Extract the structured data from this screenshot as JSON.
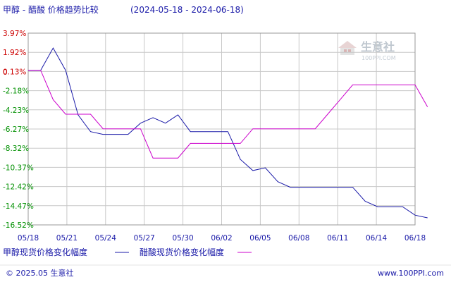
{
  "chart_data": {
    "type": "line",
    "title": "甲醇 - 醋酸  价格趋势比较",
    "date_range": "(2024-05-18 - 2024-06-18)",
    "x_ticks": [
      "05/18",
      "05/21",
      "05/24",
      "05/27",
      "05/30",
      "06/02",
      "06/05",
      "06/08",
      "06/11",
      "06/14",
      "06/18"
    ],
    "y_ticks": [
      "3.97%",
      "1.92%",
      "0.13%",
      "-2.18%",
      "-4.23%",
      "-6.27%",
      "-8.32%",
      "-10.37%",
      "-12.42%",
      "-14.47%",
      "-16.52%"
    ],
    "y_tick_colors": [
      "#cc0000",
      "#cc0000",
      "#cc0000",
      "#009000",
      "#009000",
      "#009000",
      "#009000",
      "#009000",
      "#009000",
      "#009000",
      "#009000"
    ],
    "y_zero_label": "0",
    "xlim": [
      "2024-05-18",
      "2024-06-18"
    ],
    "ylim": [
      -16.52,
      3.97
    ],
    "grid": true,
    "series": [
      {
        "name": "甲醇现货价格变化幅度",
        "color": "#1a1aa8",
        "points": [
          [
            "2024-05-18",
            0.0
          ],
          [
            "2024-05-19",
            0.0
          ],
          [
            "2024-05-20",
            2.38
          ],
          [
            "2024-05-21",
            0.0
          ],
          [
            "2024-05-22",
            -4.76
          ],
          [
            "2024-05-23",
            -6.55
          ],
          [
            "2024-05-24",
            -6.85
          ],
          [
            "2024-05-26",
            -6.85
          ],
          [
            "2024-05-27",
            -5.65
          ],
          [
            "2024-05-28",
            -5.06
          ],
          [
            "2024-05-29",
            -5.65
          ],
          [
            "2024-05-30",
            -4.76
          ],
          [
            "2024-05-31",
            -6.55
          ],
          [
            "2024-06-01",
            -6.55
          ],
          [
            "2024-06-03",
            -6.55
          ],
          [
            "2024-06-04",
            -9.52
          ],
          [
            "2024-06-05",
            -10.71
          ],
          [
            "2024-06-06",
            -10.42
          ],
          [
            "2024-06-07",
            -11.9
          ],
          [
            "2024-06-08",
            -12.5
          ],
          [
            "2024-06-13",
            -12.5
          ],
          [
            "2024-06-14",
            -13.99
          ],
          [
            "2024-06-15",
            -14.58
          ],
          [
            "2024-06-17",
            -14.58
          ],
          [
            "2024-06-18",
            -15.48
          ],
          [
            "2024-06-19",
            -15.77
          ]
        ]
      },
      {
        "name": "醋酸现货价格变化幅度",
        "color": "#cc00cc",
        "points": [
          [
            "2024-05-18",
            0.0
          ],
          [
            "2024-05-19",
            0.0
          ],
          [
            "2024-05-20",
            -3.13
          ],
          [
            "2024-05-21",
            -4.69
          ],
          [
            "2024-05-22",
            -4.69
          ],
          [
            "2024-05-23",
            -4.69
          ],
          [
            "2024-05-24",
            -6.25
          ],
          [
            "2024-05-26",
            -6.25
          ],
          [
            "2024-05-27",
            -6.25
          ],
          [
            "2024-05-28",
            -9.38
          ],
          [
            "2024-05-30",
            -9.38
          ],
          [
            "2024-05-31",
            -7.81
          ],
          [
            "2024-06-04",
            -7.81
          ],
          [
            "2024-06-05",
            -6.25
          ],
          [
            "2024-06-10",
            -6.25
          ],
          [
            "2024-06-11",
            -4.69
          ],
          [
            "2024-06-12",
            -3.13
          ],
          [
            "2024-06-13",
            -1.56
          ],
          [
            "2024-06-18",
            -1.56
          ],
          [
            "2024-06-19",
            -3.91
          ]
        ]
      }
    ]
  },
  "watermark": {
    "brand": "生意社",
    "domain": "100PPI.COM"
  },
  "footer": {
    "copyright": "© 2025.05 生意社",
    "link": "www.100PPI.com"
  },
  "colors": {
    "blue": "#1a1aa8",
    "magenta": "#cc00cc",
    "grid": "#c8c8c8",
    "red_tick": "#cc0000",
    "green_tick": "#009000"
  }
}
